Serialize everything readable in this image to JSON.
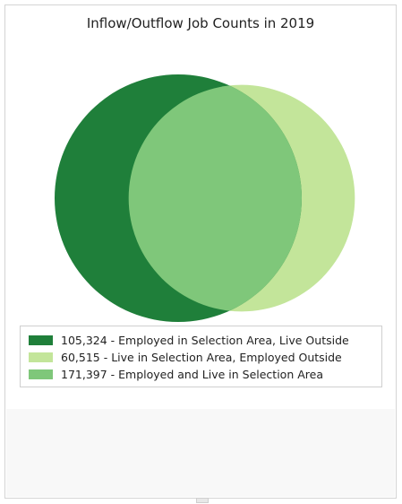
{
  "chart_data": {
    "type": "venn",
    "title": "Inflow/Outflow Job Counts in 2019",
    "sets": [
      {
        "label": "105,324 - Employed in Selection Area, Live Outside",
        "value": 105324,
        "color": "#1f7f3a"
      },
      {
        "label": "60,515 - Live in Selection Area, Employed Outside",
        "value": 60515,
        "color": "#c3e59a"
      },
      {
        "label": "171,397 - Employed and Live in Selection Area",
        "value": 171397,
        "color": "#7fc77a"
      }
    ],
    "legend_position": "bottom"
  }
}
